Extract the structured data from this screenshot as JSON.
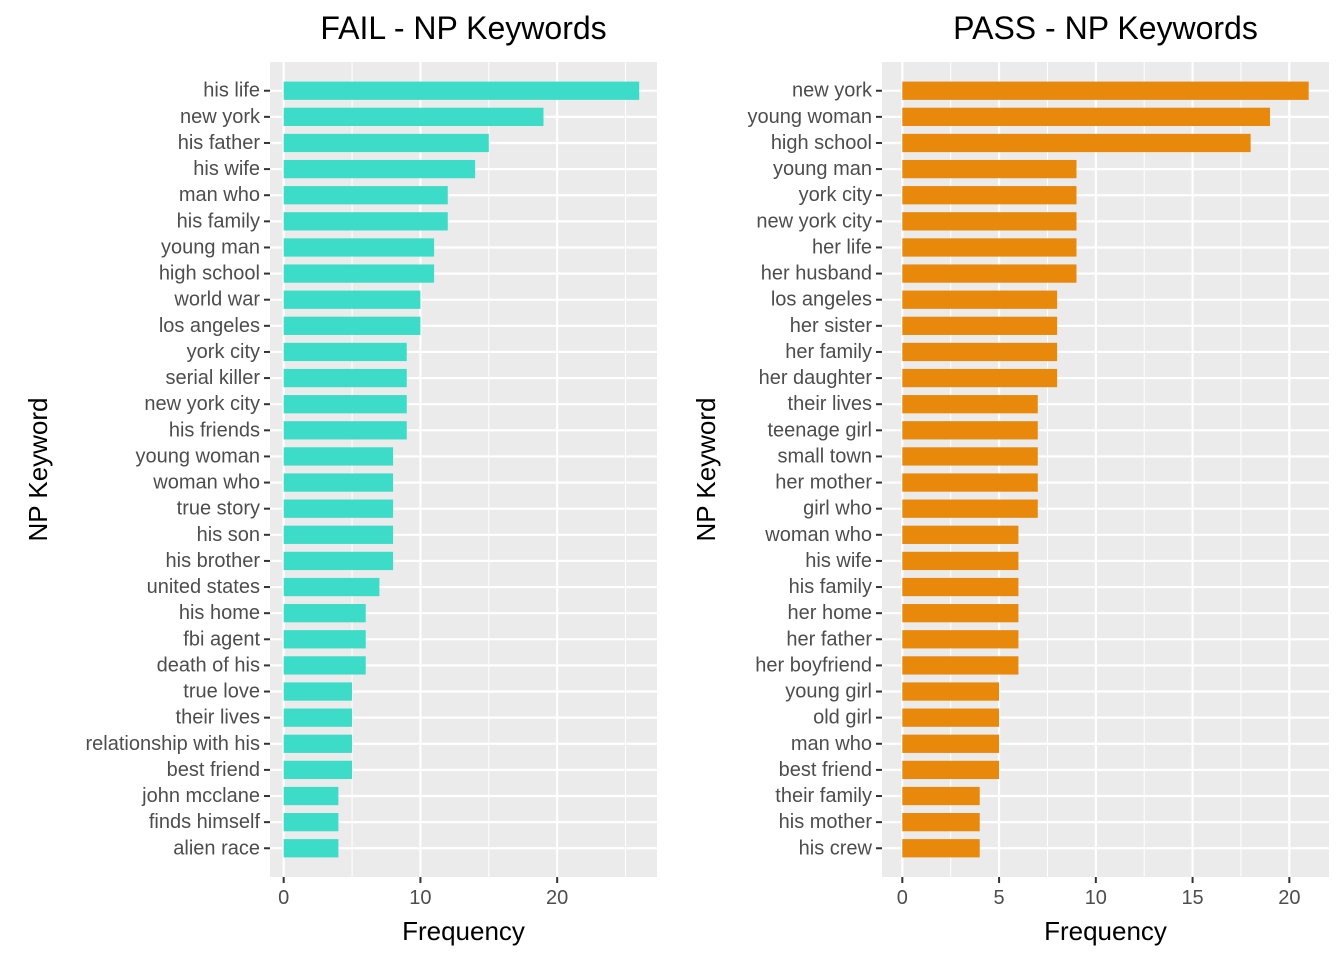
{
  "chart_data": [
    {
      "type": "bar",
      "orientation": "horizontal",
      "title": "FAIL - NP Keywords",
      "xlabel": "Frequency",
      "ylabel": "NP Keyword",
      "xlim": [
        -1,
        27.3
      ],
      "xticks": [
        0,
        10,
        20
      ],
      "grid": true,
      "legend": "none",
      "bar_color": "#3DDCC8",
      "categories": [
        "his life",
        "new york",
        "his father",
        "his wife",
        "man who",
        "his family",
        "young man",
        "high school",
        "world war",
        "los angeles",
        "york city",
        "serial killer",
        "new york city",
        "his friends",
        "young woman",
        "woman who",
        "true story",
        "his son",
        "his brother",
        "united states",
        "his home",
        "fbi agent",
        "death of his",
        "true love",
        "their lives",
        "relationship with his",
        "best friend",
        "john mcclane",
        "finds himself",
        "alien race"
      ],
      "values": [
        26,
        19,
        15,
        14,
        12,
        12,
        11,
        11,
        10,
        10,
        9,
        9,
        9,
        9,
        8,
        8,
        8,
        8,
        8,
        7,
        6,
        6,
        6,
        5,
        5,
        5,
        5,
        4,
        4,
        4
      ]
    },
    {
      "type": "bar",
      "orientation": "horizontal",
      "title": "PASS - NP Keywords",
      "xlabel": "Frequency",
      "ylabel": "NP Keyword",
      "xlim": [
        -1.05,
        22.05
      ],
      "xticks": [
        0,
        5,
        10,
        15,
        20
      ],
      "grid": true,
      "legend": "none",
      "bar_color": "#E8890C",
      "categories": [
        "new york",
        "young woman",
        "high school",
        "young man",
        "york city",
        "new york city",
        "her life",
        "her husband",
        "los angeles",
        "her sister",
        "her family",
        "her daughter",
        "their lives",
        "teenage girl",
        "small town",
        "her mother",
        "girl who",
        "woman who",
        "his wife",
        "his family",
        "her home",
        "her father",
        "her boyfriend",
        "young girl",
        "old girl",
        "man who",
        "best friend",
        "their family",
        "his mother",
        "his crew"
      ],
      "values": [
        21,
        19,
        18,
        9,
        9,
        9,
        9,
        9,
        8,
        8,
        8,
        8,
        7,
        7,
        7,
        7,
        7,
        6,
        6,
        6,
        6,
        6,
        6,
        5,
        5,
        5,
        5,
        4,
        4,
        4
      ]
    }
  ]
}
